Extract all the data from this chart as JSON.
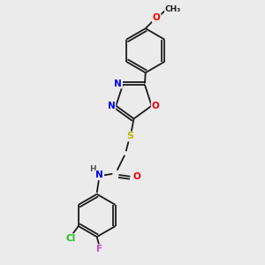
{
  "background_color": "#ebebeb",
  "bond_color": "#1a1a1a",
  "atoms": {
    "N_color": "#0000ee",
    "O_color": "#ee0000",
    "S_color": "#bbbb00",
    "Cl_color": "#22bb22",
    "F_color": "#cc44cc",
    "H_color": "#555555"
  },
  "figsize": [
    3.0,
    3.0
  ],
  "dpi": 100,
  "xlim": [
    0,
    10
  ],
  "ylim": [
    0,
    10
  ]
}
